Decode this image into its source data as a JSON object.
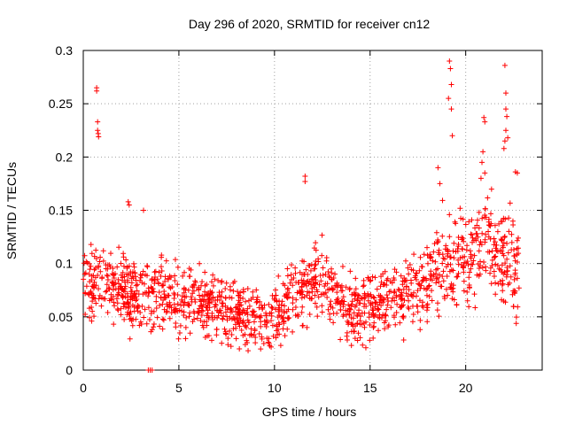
{
  "chart_data": {
    "type": "scatter",
    "title": "Day 296 of 2020, SRMTID for receiver cn12",
    "xlabel": "GPS time / hours",
    "ylabel": "SRMTID / TECUs",
    "xlim": [
      0,
      24
    ],
    "ylim": [
      0,
      0.3
    ],
    "xticks": [
      0,
      5,
      10,
      15,
      20
    ],
    "xtick_labels": [
      "0",
      "5",
      "10",
      "15",
      "20"
    ],
    "yticks": [
      0,
      0.05,
      0.1,
      0.15,
      0.2,
      0.25,
      0.3
    ],
    "ytick_labels": [
      "0",
      "0.05",
      "0.1",
      "0.15",
      "0.2",
      "0.25",
      "0.3"
    ],
    "grid": true,
    "marker": "+",
    "color": "#ff0000",
    "grid_color": "#a0a0a0",
    "point_count": 1500,
    "baseline_trend": [
      {
        "x": 0.0,
        "y": 0.08
      },
      {
        "x": 1.0,
        "y": 0.085
      },
      {
        "x": 2.0,
        "y": 0.075
      },
      {
        "x": 3.0,
        "y": 0.068
      },
      {
        "x": 4.0,
        "y": 0.072
      },
      {
        "x": 5.0,
        "y": 0.065
      },
      {
        "x": 6.0,
        "y": 0.065
      },
      {
        "x": 7.0,
        "y": 0.06
      },
      {
        "x": 8.0,
        "y": 0.052
      },
      {
        "x": 9.0,
        "y": 0.048
      },
      {
        "x": 10.0,
        "y": 0.05
      },
      {
        "x": 11.0,
        "y": 0.065
      },
      {
        "x": 12.0,
        "y": 0.088
      },
      {
        "x": 13.0,
        "y": 0.075
      },
      {
        "x": 14.0,
        "y": 0.06
      },
      {
        "x": 15.0,
        "y": 0.055
      },
      {
        "x": 16.0,
        "y": 0.065
      },
      {
        "x": 17.0,
        "y": 0.075
      },
      {
        "x": 18.0,
        "y": 0.085
      },
      {
        "x": 19.0,
        "y": 0.105
      },
      {
        "x": 20.0,
        "y": 0.11
      },
      {
        "x": 21.0,
        "y": 0.115
      },
      {
        "x": 22.0,
        "y": 0.1
      },
      {
        "x": 22.8,
        "y": 0.1
      }
    ],
    "spread": 0.022,
    "highlighted_points": [
      {
        "x": 0.7,
        "y": 0.265
      },
      {
        "x": 0.7,
        "y": 0.262
      },
      {
        "x": 0.75,
        "y": 0.233
      },
      {
        "x": 0.75,
        "y": 0.225
      },
      {
        "x": 0.78,
        "y": 0.222
      },
      {
        "x": 0.8,
        "y": 0.219
      },
      {
        "x": 2.35,
        "y": 0.158
      },
      {
        "x": 2.4,
        "y": 0.155
      },
      {
        "x": 3.15,
        "y": 0.15
      },
      {
        "x": 3.4,
        "y": 0.0
      },
      {
        "x": 3.5,
        "y": 0.0
      },
      {
        "x": 3.6,
        "y": 0.0
      },
      {
        "x": 11.6,
        "y": 0.182
      },
      {
        "x": 11.6,
        "y": 0.177
      },
      {
        "x": 19.15,
        "y": 0.29
      },
      {
        "x": 19.2,
        "y": 0.283
      },
      {
        "x": 19.25,
        "y": 0.268
      },
      {
        "x": 19.25,
        "y": 0.245
      },
      {
        "x": 19.3,
        "y": 0.22
      },
      {
        "x": 19.1,
        "y": 0.255
      },
      {
        "x": 20.95,
        "y": 0.237
      },
      {
        "x": 21.0,
        "y": 0.233
      },
      {
        "x": 20.9,
        "y": 0.205
      },
      {
        "x": 20.85,
        "y": 0.195
      },
      {
        "x": 21.0,
        "y": 0.185
      },
      {
        "x": 20.8,
        "y": 0.18
      },
      {
        "x": 22.05,
        "y": 0.286
      },
      {
        "x": 22.1,
        "y": 0.26
      },
      {
        "x": 22.1,
        "y": 0.245
      },
      {
        "x": 22.15,
        "y": 0.238
      },
      {
        "x": 22.1,
        "y": 0.225
      },
      {
        "x": 22.2,
        "y": 0.218
      },
      {
        "x": 22.05,
        "y": 0.215
      },
      {
        "x": 22.0,
        "y": 0.208
      },
      {
        "x": 22.6,
        "y": 0.186
      },
      {
        "x": 22.7,
        "y": 0.185
      },
      {
        "x": 18.55,
        "y": 0.19
      },
      {
        "x": 18.65,
        "y": 0.175
      }
    ]
  }
}
